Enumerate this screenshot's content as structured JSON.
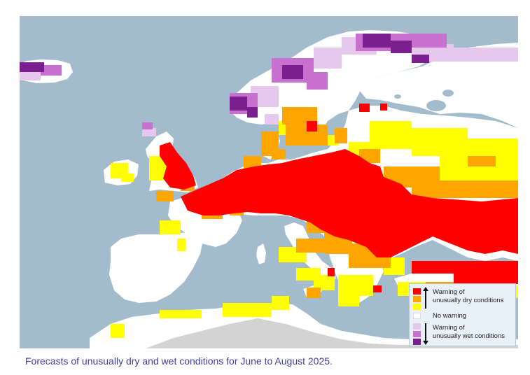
{
  "caption": "Forecasts of unusually dry and wet conditions for June to August 2025.",
  "legend": {
    "dry_label_line1": "Warning of",
    "dry_label_line2": "unusually dry conditions",
    "none_label": "No warning",
    "wet_label_line1": "Warning of",
    "wet_label_line2": "unusually wet conditions"
  },
  "colors": {
    "sea": "#a3bccd",
    "no_warning": "#ffffff",
    "no_data": "#d3d3d3",
    "dry_high": "#ff0000",
    "dry_mid": "#ffa500",
    "dry_low": "#ffff00",
    "wet_low": "#e6c8ee",
    "wet_mid": "#c770d0",
    "wet_high": "#7a1f8f"
  },
  "icons": {
    "up_arrow": "arrow-up-icon",
    "down_arrow": "arrow-down-icon"
  }
}
